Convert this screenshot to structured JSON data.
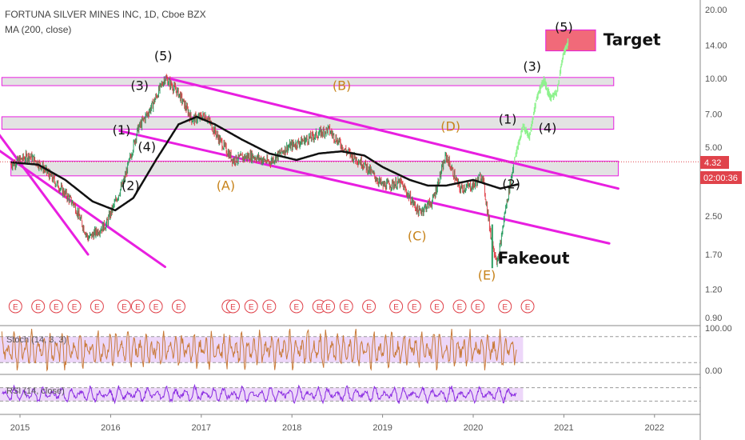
{
  "header": {
    "symbol_line": "FORTUNA SILVER MINES INC, 1D, Cboe BZX",
    "ma_line": "MA (200, close)"
  },
  "chart_data": {
    "type": "line",
    "price_scale": "log",
    "y_ticks": [
      "20.00",
      "14.00",
      "10.00",
      "7.00",
      "5.00",
      "4.32",
      "2.50",
      "1.70",
      "1.20",
      "0.90"
    ],
    "x_ticks": [
      "2015",
      "2016",
      "2017",
      "2018",
      "2019",
      "2020",
      "2021",
      "2022"
    ],
    "last_price": "4.32",
    "countdown": "02:00:36",
    "price_series_anchors": [
      [
        2014.9,
        4.2
      ],
      [
        2015.1,
        4.6
      ],
      [
        2015.25,
        4.1
      ],
      [
        2015.45,
        3.3
      ],
      [
        2015.6,
        2.8
      ],
      [
        2015.75,
        2.0
      ],
      [
        2015.95,
        2.3
      ],
      [
        2016.15,
        3.6
      ],
      [
        2016.3,
        6.0
      ],
      [
        2016.45,
        7.5
      ],
      [
        2016.6,
        10.1
      ],
      [
        2016.75,
        8.6
      ],
      [
        2016.9,
        6.6
      ],
      [
        2017.05,
        6.9
      ],
      [
        2017.2,
        5.4
      ],
      [
        2017.35,
        4.4
      ],
      [
        2017.55,
        4.6
      ],
      [
        2017.75,
        4.3
      ],
      [
        2017.95,
        5.0
      ],
      [
        2018.2,
        5.5
      ],
      [
        2018.4,
        6.0
      ],
      [
        2018.6,
        4.8
      ],
      [
        2018.8,
        4.2
      ],
      [
        2019.0,
        3.4
      ],
      [
        2019.2,
        3.5
      ],
      [
        2019.4,
        2.6
      ],
      [
        2019.55,
        2.9
      ],
      [
        2019.7,
        4.6
      ],
      [
        2019.85,
        3.3
      ],
      [
        2020.0,
        3.4
      ],
      [
        2020.1,
        3.8
      ],
      [
        2020.2,
        2.0
      ],
      [
        2020.27,
        1.55
      ],
      [
        2020.35,
        2.6
      ],
      [
        2020.45,
        4.3
      ]
    ],
    "ma200_anchors": [
      [
        2014.9,
        4.3
      ],
      [
        2015.2,
        4.2
      ],
      [
        2015.5,
        3.6
      ],
      [
        2015.8,
        2.9
      ],
      [
        2016.05,
        2.65
      ],
      [
        2016.25,
        3.0
      ],
      [
        2016.5,
        4.4
      ],
      [
        2016.75,
        6.3
      ],
      [
        2016.95,
        6.8
      ],
      [
        2017.15,
        6.3
      ],
      [
        2017.45,
        5.4
      ],
      [
        2017.75,
        4.7
      ],
      [
        2018.05,
        4.4
      ],
      [
        2018.3,
        4.7
      ],
      [
        2018.55,
        4.8
      ],
      [
        2018.8,
        4.6
      ],
      [
        2019.0,
        4.1
      ],
      [
        2019.3,
        3.6
      ],
      [
        2019.5,
        3.4
      ],
      [
        2019.7,
        3.4
      ],
      [
        2020.0,
        3.6
      ],
      [
        2020.3,
        3.3
      ],
      [
        2020.5,
        3.45
      ]
    ],
    "projection_anchors": [
      [
        2020.45,
        4.3
      ],
      [
        2020.55,
        6.2
      ],
      [
        2020.62,
        5.5
      ],
      [
        2020.7,
        8.2
      ],
      [
        2020.78,
        9.9
      ],
      [
        2020.85,
        8.2
      ],
      [
        2020.92,
        8.6
      ],
      [
        2021.0,
        13.0
      ],
      [
        2021.05,
        14.5
      ]
    ],
    "wave_labels": [
      {
        "text": "(5)",
        "x": 2016.58,
        "y": 12.0,
        "color": "#111"
      },
      {
        "text": "(3)",
        "x": 2016.32,
        "y": 8.9,
        "color": "#111"
      },
      {
        "text": "(1)",
        "x": 2016.12,
        "y": 5.7,
        "color": "#111"
      },
      {
        "text": "(4)",
        "x": 2016.4,
        "y": 4.8,
        "color": "#111"
      },
      {
        "text": "(2)",
        "x": 2016.22,
        "y": 3.25,
        "color": "#111"
      },
      {
        "text": "(A)",
        "x": 2017.27,
        "y": 3.25,
        "color": "#c7831b"
      },
      {
        "text": "(B)",
        "x": 2018.55,
        "y": 8.9,
        "color": "#c7831b"
      },
      {
        "text": "(C)",
        "x": 2019.38,
        "y": 1.96,
        "color": "#c7831b"
      },
      {
        "text": "(D)",
        "x": 2019.75,
        "y": 5.9,
        "color": "#c7831b"
      },
      {
        "text": "(E)",
        "x": 2020.15,
        "y": 1.32,
        "color": "#c7831b"
      },
      {
        "text": "(1)",
        "x": 2020.38,
        "y": 6.35,
        "color": "#111"
      },
      {
        "text": "(2)",
        "x": 2020.42,
        "y": 3.3,
        "color": "#111"
      },
      {
        "text": "(3)",
        "x": 2020.65,
        "y": 10.8,
        "color": "#111"
      },
      {
        "text": "(4)",
        "x": 2020.82,
        "y": 5.8,
        "color": "#111"
      },
      {
        "text": "(5)",
        "x": 2021.0,
        "y": 16.0,
        "color": "#111"
      }
    ],
    "annotations": {
      "target": "Target",
      "fakeout": "Fakeout"
    },
    "zones": [
      {
        "x0": 2014.8,
        "x1": 2021.55,
        "y0": 9.3,
        "y1": 10.1
      },
      {
        "x0": 2014.8,
        "x1": 2021.55,
        "y0": 6.0,
        "y1": 6.8
      },
      {
        "x0": 2014.9,
        "x1": 2021.6,
        "y0": 3.75,
        "y1": 4.35
      },
      {
        "x0": 2020.8,
        "x1": 2021.35,
        "y0": 13.2,
        "y1": 16.3
      }
    ],
    "trendlines": [
      [
        [
          2014.6,
          7.0
        ],
        [
          2015.75,
          1.7
        ]
      ],
      [
        [
          2014.6,
          5.4
        ],
        [
          2016.6,
          1.5
        ]
      ],
      [
        [
          2016.6,
          10.1
        ],
        [
          2021.6,
          3.3
        ]
      ],
      [
        [
          2016.1,
          5.9
        ],
        [
          2021.5,
          1.9
        ]
      ]
    ],
    "earnings_marker": "E",
    "earnings_x": [
      2014.95,
      2015.2,
      2015.4,
      2015.6,
      2015.85,
      2016.15,
      2016.3,
      2016.5,
      2016.75,
      2017.3,
      2017.35,
      2017.55,
      2017.75,
      2018.05,
      2018.3,
      2018.4,
      2018.6,
      2018.85,
      2019.15,
      2019.35,
      2019.6,
      2019.85,
      2020.05,
      2020.35,
      2020.6
    ],
    "stoch": {
      "label": "Stoch (14, 3, 3)",
      "ticks": [
        "100.00",
        "0.00"
      ],
      "upper": 80,
      "lower": 20
    },
    "rsi": {
      "label": "RSI (14, close)",
      "upper": 70,
      "lower": 30
    },
    "colors": {
      "magenta": "#e81fe0",
      "price_up": "#2a9d62",
      "price_down": "#e0434b",
      "ma": "#111111",
      "projection": "#8ef28e",
      "zone_fill": "#d9d9d9",
      "target_fill": "#f06272",
      "band_fill": "#e1bdf5"
    }
  }
}
